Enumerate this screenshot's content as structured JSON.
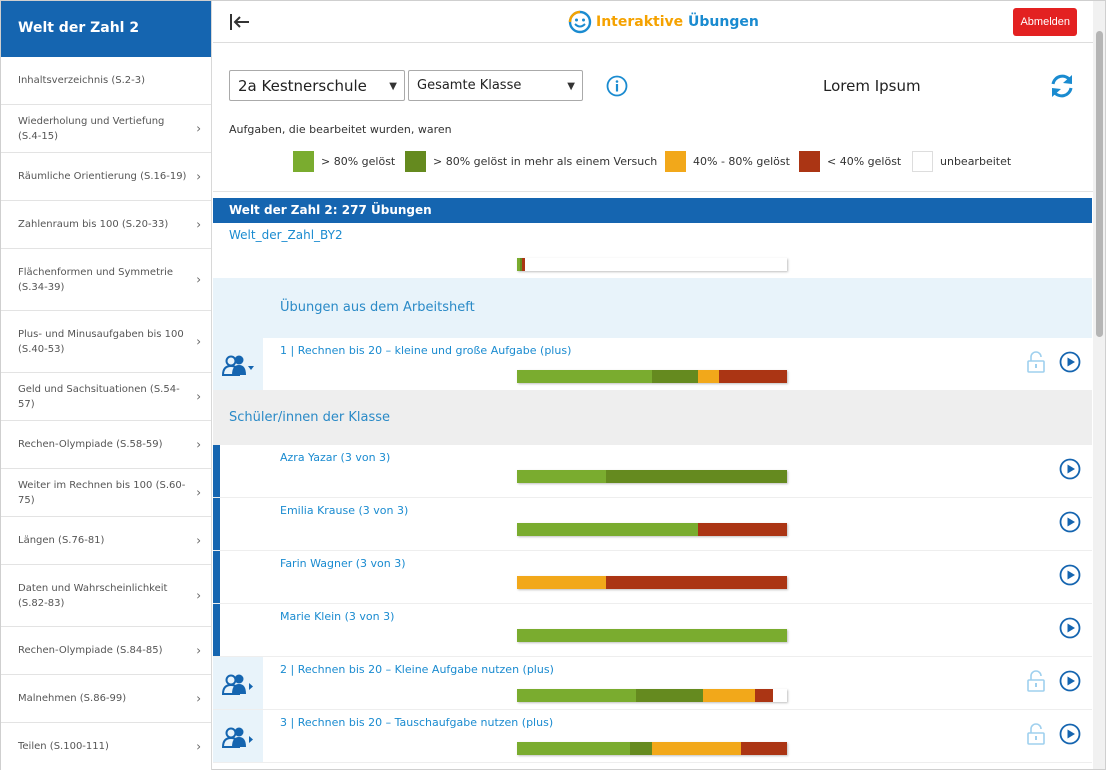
{
  "colors": {
    "primary": "#1565b0",
    "accent": "#1a8bd0",
    "logout": "#e32121",
    "solved": "#7aac2f",
    "solved_multi": "#658a1f",
    "partial": "#f2a81a",
    "low": "#ab3514",
    "open": "#ffffff"
  },
  "sidebar": {
    "title": "Welt der Zahl 2",
    "items": [
      {
        "label": "Inhaltsverzeichnis (S.2-3)",
        "chevron": false
      },
      {
        "label": "Wiederholung und Vertiefung (S.4-15)",
        "chevron": true
      },
      {
        "label": "Räumliche Orientierung (S.16-19)",
        "chevron": true
      },
      {
        "label": "Zahlenraum bis 100 (S.20-33)",
        "chevron": true
      },
      {
        "label": "Flächenformen und Symmetrie (S.34-39)",
        "chevron": true
      },
      {
        "label": "Plus- und Minusaufgaben bis 100 (S.40-53)",
        "chevron": true
      },
      {
        "label": "Geld und Sachsituationen (S.54-57)",
        "chevron": true
      },
      {
        "label": "Rechen-Olympiade (S.58-59)",
        "chevron": true
      },
      {
        "label": "Weiter im Rechnen bis 100 (S.60-75)",
        "chevron": true
      },
      {
        "label": "Längen (S.76-81)",
        "chevron": true
      },
      {
        "label": "Daten und Wahrscheinlichkeit (S.82-83)",
        "chevron": true
      },
      {
        "label": "Rechen-Olympiade (S.84-85)",
        "chevron": true
      },
      {
        "label": "Malnehmen (S.86-99)",
        "chevron": true
      },
      {
        "label": "Teilen (S.100-111)",
        "chevron": true
      }
    ]
  },
  "header": {
    "collapse_icon": "collapse-left-icon",
    "logo_text_a": "Interaktive",
    "logo_text_b": "Übungen",
    "logout_label": "Abmelden"
  },
  "filters": {
    "class_select": "2a Kestnerschule",
    "scope_select": "Gesamte Klasse",
    "info_icon": "info-icon",
    "teacher_name": "Lorem Ipsum",
    "refresh_icon": "refresh-icon",
    "legend_caption": "Aufgaben, die bearbeitet wurden, waren",
    "legend": [
      {
        "label": "> 80% gelöst"
      },
      {
        "label": "> 80% gelöst in mehr als einem Versuch"
      },
      {
        "label": "40% - 80% gelöst"
      },
      {
        "label": "< 40% gelöst"
      },
      {
        "label": "unbearbeitet"
      }
    ]
  },
  "main": {
    "book_title": "Welt der Zahl 2: 277 Übungen",
    "book_link": "Welt_der_Zahl_BY2",
    "book_progress": [
      0.01,
      0.01,
      0.0,
      0.01,
      0.97
    ],
    "section_title": "Übungen aus dem Arbeitsheft",
    "students_heading": "Schüler/innen der Klasse",
    "tasks": [
      {
        "title": "1 | Rechnen bis 20 – kleine und große Aufgabe (plus)",
        "progress": [
          0.5,
          0.17,
          0.08,
          0.25,
          0.0
        ]
      },
      {
        "title": "2 | Rechnen bis 20 – Kleine Aufgabe nutzen (plus)",
        "progress": [
          0.44,
          0.25,
          0.19,
          0.07,
          0.05
        ]
      },
      {
        "title": "3 | Rechnen bis 20 – Tauschaufgabe nutzen (plus)",
        "progress": [
          0.42,
          0.08,
          0.33,
          0.17,
          0.0
        ]
      }
    ],
    "students": [
      {
        "name": "Azra Yazar (3 von 3)",
        "progress": [
          0.33,
          0.67,
          0.0,
          0.0,
          0.0
        ]
      },
      {
        "name": "Emilia Krause (3 von 3)",
        "progress": [
          0.67,
          0.0,
          0.0,
          0.33,
          0.0
        ]
      },
      {
        "name": "Farin Wagner (3 von 3)",
        "progress": [
          0.0,
          0.0,
          0.33,
          0.67,
          0.0
        ]
      },
      {
        "name": "Marie Klein (3 von 3)",
        "progress": [
          1.0,
          0.0,
          0.0,
          0.0,
          0.0
        ]
      }
    ]
  }
}
